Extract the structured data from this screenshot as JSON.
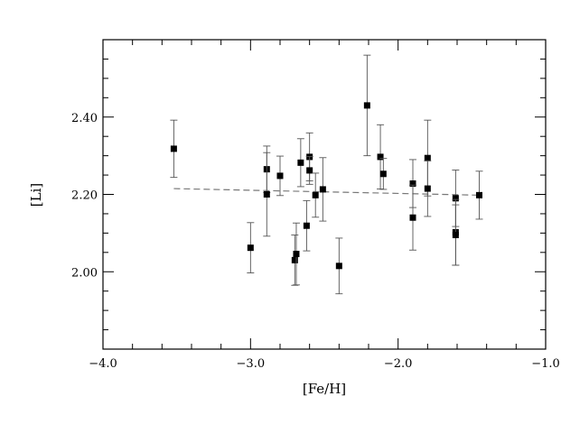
{
  "chart_data": {
    "type": "scatter",
    "xlabel": "[Fe/H]",
    "ylabel": "[Li]",
    "xlim": [
      -4.0,
      -1.0
    ],
    "ylim": [
      1.8,
      2.6
    ],
    "xticks": [
      -4.0,
      -3.0,
      -2.0,
      -1.0
    ],
    "xtick_labels": [
      "−4.0",
      "−3.0",
      "−2.0",
      "−1.0"
    ],
    "yticks": [
      2.0,
      2.2,
      2.4
    ],
    "ytick_labels": [
      "2.00",
      "2.20",
      "2.40"
    ],
    "grid": false,
    "points": [
      {
        "x": -3.52,
        "y": 2.318,
        "err": 0.074
      },
      {
        "x": -3.0,
        "y": 2.062,
        "err": 0.065
      },
      {
        "x": -2.89,
        "y": 2.265,
        "err": 0.06
      },
      {
        "x": -2.89,
        "y": 2.2,
        "err": 0.108
      },
      {
        "x": -2.8,
        "y": 2.248,
        "err": 0.051
      },
      {
        "x": -2.7,
        "y": 2.03,
        "err": 0.065
      },
      {
        "x": -2.69,
        "y": 2.046,
        "err": 0.08
      },
      {
        "x": -2.66,
        "y": 2.282,
        "err": 0.062
      },
      {
        "x": -2.62,
        "y": 2.119,
        "err": 0.065
      },
      {
        "x": -2.6,
        "y": 2.297,
        "err": 0.062
      },
      {
        "x": -2.6,
        "y": 2.262,
        "err": 0.036
      },
      {
        "x": -2.56,
        "y": 2.198,
        "err": 0.057
      },
      {
        "x": -2.51,
        "y": 2.213,
        "err": 0.082
      },
      {
        "x": -2.4,
        "y": 2.015,
        "err": 0.072
      },
      {
        "x": -2.21,
        "y": 2.43,
        "err": 0.13
      },
      {
        "x": -2.12,
        "y": 2.297,
        "err": 0.083
      },
      {
        "x": -2.1,
        "y": 2.253,
        "err": 0.04
      },
      {
        "x": -1.9,
        "y": 2.228,
        "err": 0.062
      },
      {
        "x": -1.9,
        "y": 2.14,
        "err": 0.084
      },
      {
        "x": -1.8,
        "y": 2.294,
        "err": 0.098
      },
      {
        "x": -1.8,
        "y": 2.215,
        "err": 0.072
      },
      {
        "x": -1.61,
        "y": 2.19,
        "err": 0.073
      },
      {
        "x": -1.61,
        "y": 2.102,
        "err": 0.085
      },
      {
        "x": -1.61,
        "y": 2.095,
        "err": 0.078
      },
      {
        "x": -1.45,
        "y": 2.198,
        "err": 0.062
      }
    ],
    "fit_line": {
      "style": "dashed",
      "x": [
        -3.52,
        -1.45
      ],
      "y": [
        2.215,
        2.198
      ]
    }
  }
}
